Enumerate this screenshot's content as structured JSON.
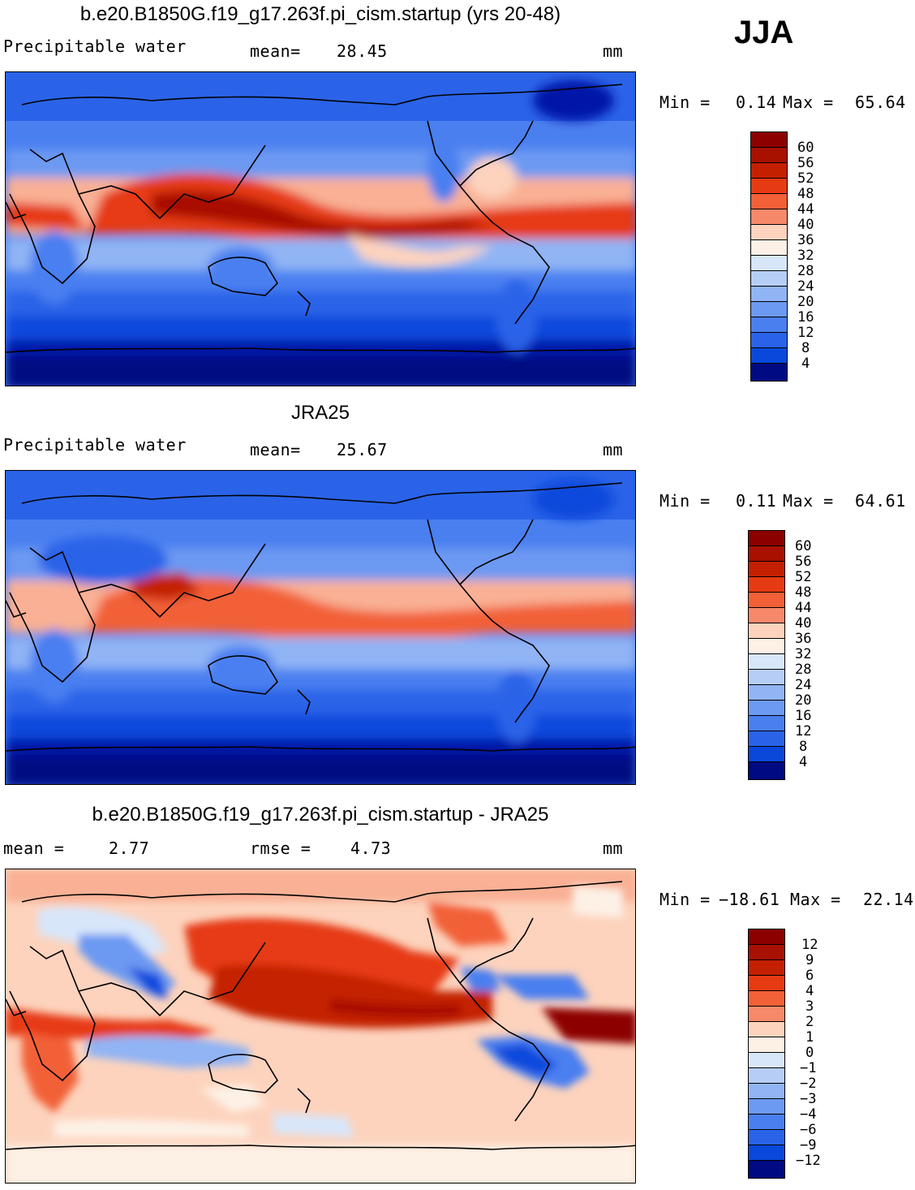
{
  "season": "JJA",
  "colors": {
    "precip_scale": [
      "#000a82",
      "#0019a7",
      "#0030c6",
      "#0a48dc",
      "#2a63e8",
      "#4a7ff0",
      "#6c99f2",
      "#90b4f4",
      "#b6ceF6",
      "#d8e6fa",
      "#fdf1e6",
      "#fdd3bd",
      "#f9b094",
      "#f7896a",
      "#f26038",
      "#e63a12",
      "#c42000",
      "#a81000",
      "#8c0000"
    ],
    "diff_scale": [
      "#000a82",
      "#0019a7",
      "#0030c6",
      "#0a48dc",
      "#2a63e8",
      "#4a7ff0",
      "#6c99f2",
      "#90b4f4",
      "#b6cef6",
      "#d8e6fa",
      "#fdf1e6",
      "#fdd3bd",
      "#f9b094",
      "#f7896a",
      "#f26038",
      "#e63a12",
      "#c42000",
      "#a81000",
      "#8c0000"
    ]
  },
  "panels": [
    {
      "title": "b.e20.B1850G.f19_g17.263f.pi_cism.startup (yrs 20-48)",
      "left_label": "Precipitable water",
      "mid_label": "mean=",
      "mid_value": "28.45",
      "units": "mm",
      "min_label": "Min =",
      "min_value": "0.14",
      "max_label": "Max =",
      "max_value": "65.64",
      "levels": [
        "60",
        "56",
        "52",
        "48",
        "44",
        "40",
        "36",
        "32",
        "28",
        "24",
        "20",
        "16",
        "12",
        "8",
        "4"
      ]
    },
    {
      "title": "JRA25",
      "left_label": "Precipitable water",
      "mid_label": "mean=",
      "mid_value": "25.67",
      "units": "mm",
      "min_label": "Min =",
      "min_value": "0.11",
      "max_label": "Max =",
      "max_value": "64.61",
      "levels": [
        "60",
        "56",
        "52",
        "48",
        "44",
        "40",
        "36",
        "32",
        "28",
        "24",
        "20",
        "16",
        "12",
        "8",
        "4"
      ]
    },
    {
      "title": "b.e20.B1850G.f19_g17.263f.pi_cism.startup - JRA25",
      "left_label": "mean =",
      "left_value": "2.77",
      "mid_label": "rmse =",
      "mid_value": "4.73",
      "units": "mm",
      "min_label": "Min =",
      "min_value": "−18.61",
      "max_label": "Max =",
      "max_value": "22.14",
      "levels": [
        "12",
        "9",
        "6",
        "4",
        "3",
        "2",
        "1",
        "0",
        "−1",
        "−2",
        "−3",
        "−4",
        "−6",
        "−9",
        "−12"
      ]
    }
  ]
}
